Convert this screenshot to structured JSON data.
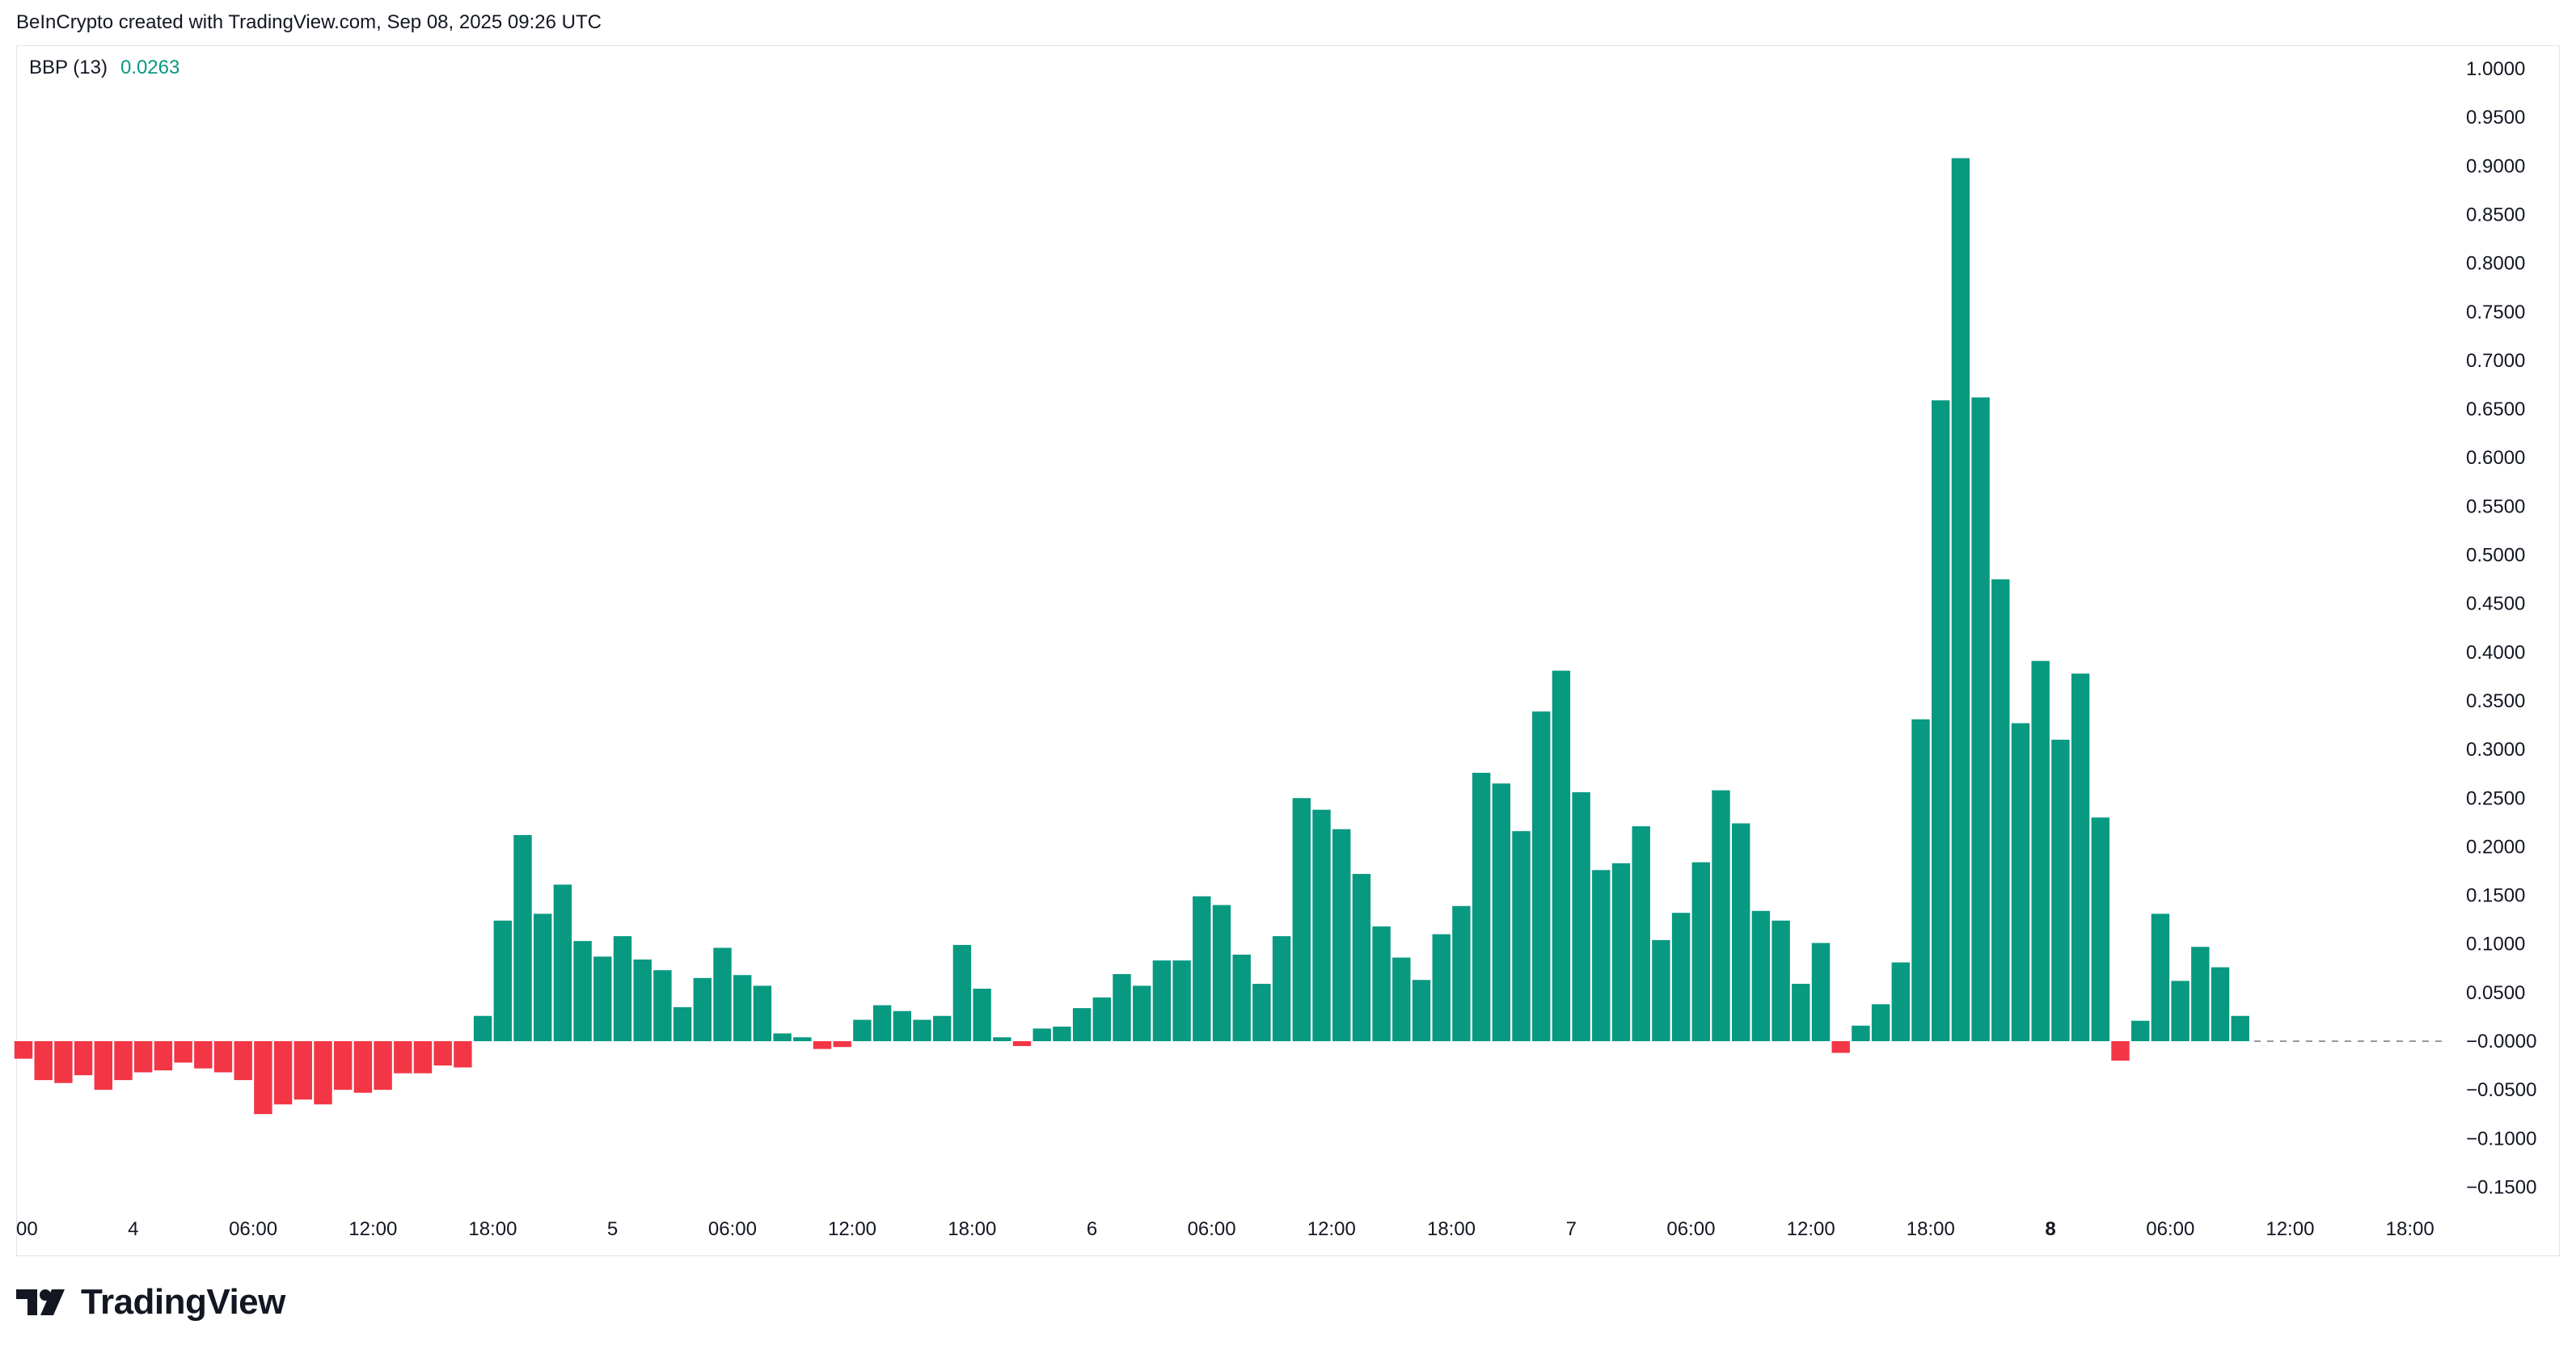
{
  "credit": "BeInCrypto created with TradingView.com, Sep 08, 2025 09:26 UTC",
  "brand": {
    "wordmark": "TradingView"
  },
  "colors": {
    "positive": "#089981",
    "negative": "#f23645",
    "zero_line": "#9598a1",
    "text": "#131722"
  },
  "chart_data": {
    "type": "bar",
    "indicator": {
      "name": "BBP (13)",
      "value": "0.0263"
    },
    "y_ticks": [
      "1.0000",
      "0.9500",
      "0.9000",
      "0.8500",
      "0.8000",
      "0.7500",
      "0.7000",
      "0.6500",
      "0.6000",
      "0.5500",
      "0.5000",
      "0.4500",
      "0.4000",
      "0.3500",
      "0.3000",
      "0.2500",
      "0.2000",
      "0.1500",
      "0.1000",
      "0.0500",
      "−0.0000",
      "−0.0500",
      "−0.1000",
      "−0.1500"
    ],
    "ylim": [
      -0.17,
      1.02
    ],
    "x_ticks": [
      {
        "label": "00",
        "bar": -0.5,
        "bold": false
      },
      {
        "label": "4",
        "bar": 5.5,
        "bold": false
      },
      {
        "label": "06:00",
        "bar": 11.5,
        "bold": false
      },
      {
        "label": "12:00",
        "bar": 17.5,
        "bold": false
      },
      {
        "label": "18:00",
        "bar": 23.5,
        "bold": false
      },
      {
        "label": "5",
        "bar": 29.5,
        "bold": false
      },
      {
        "label": "06:00",
        "bar": 35.5,
        "bold": false
      },
      {
        "label": "12:00",
        "bar": 41.5,
        "bold": false
      },
      {
        "label": "18:00",
        "bar": 47.5,
        "bold": false
      },
      {
        "label": "6",
        "bar": 53.5,
        "bold": false
      },
      {
        "label": "06:00",
        "bar": 59.5,
        "bold": false
      },
      {
        "label": "12:00",
        "bar": 65.5,
        "bold": false
      },
      {
        "label": "18:00",
        "bar": 71.5,
        "bold": false
      },
      {
        "label": "7",
        "bar": 77.5,
        "bold": false
      },
      {
        "label": "06:00",
        "bar": 83.5,
        "bold": false
      },
      {
        "label": "12:00",
        "bar": 89.5,
        "bold": false
      },
      {
        "label": "18:00",
        "bar": 95.5,
        "bold": false
      },
      {
        "label": "8",
        "bar": 101.5,
        "bold": true
      },
      {
        "label": "06:00",
        "bar": 107.5,
        "bold": false
      },
      {
        "label": "12:00",
        "bar": 113.5,
        "bold": false
      },
      {
        "label": "18:00",
        "bar": 119.5,
        "bold": false
      }
    ],
    "values": [
      -0.018,
      -0.04,
      -0.043,
      -0.035,
      -0.05,
      -0.04,
      -0.032,
      -0.03,
      -0.022,
      -0.028,
      -0.032,
      -0.04,
      -0.075,
      -0.065,
      -0.06,
      -0.065,
      -0.05,
      -0.053,
      -0.05,
      -0.033,
      -0.033,
      -0.025,
      -0.027,
      0.026,
      0.124,
      0.212,
      0.131,
      0.161,
      0.103,
      0.087,
      0.108,
      0.084,
      0.073,
      0.035,
      0.065,
      0.096,
      0.068,
      0.057,
      0.008,
      0.004,
      -0.008,
      -0.006,
      0.022,
      0.037,
      0.031,
      0.022,
      0.026,
      0.099,
      0.054,
      0.004,
      -0.005,
      0.013,
      0.015,
      0.034,
      0.045,
      0.069,
      0.057,
      0.083,
      0.083,
      0.149,
      0.14,
      0.089,
      0.059,
      0.108,
      0.25,
      0.238,
      0.218,
      0.172,
      0.118,
      0.086,
      0.063,
      0.11,
      0.139,
      0.276,
      0.265,
      0.216,
      0.339,
      0.381,
      0.256,
      0.176,
      0.183,
      0.221,
      0.104,
      0.132,
      0.184,
      0.258,
      0.224,
      0.134,
      0.124,
      0.059,
      0.101,
      -0.012,
      0.016,
      0.038,
      0.081,
      0.331,
      0.659,
      0.908,
      0.662,
      0.475,
      0.327,
      0.391,
      0.31,
      0.378,
      0.23,
      -0.02,
      0.021,
      0.131,
      0.062,
      0.097,
      0.076,
      0.026
    ]
  }
}
